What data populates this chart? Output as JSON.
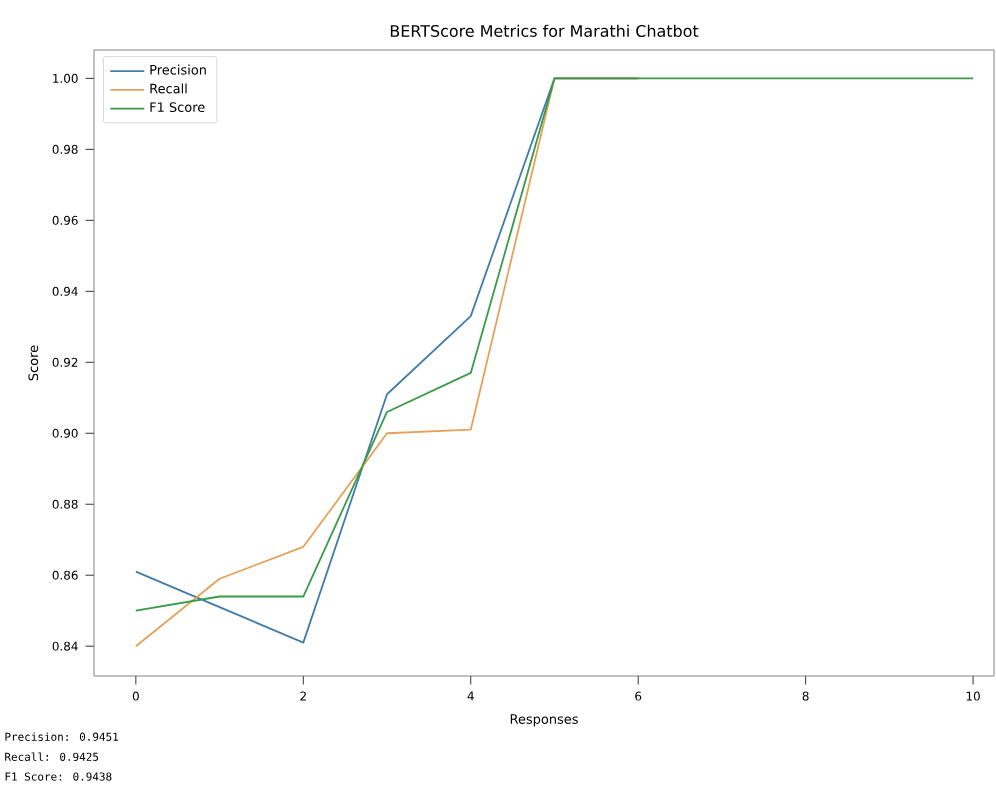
{
  "chart_data": {
    "type": "line",
    "title": "BERTScore Metrics for Marathi Chatbot",
    "xlabel": "Responses",
    "ylabel": "Score",
    "x": [
      0,
      1,
      2,
      3,
      4,
      5,
      6,
      7,
      8,
      9,
      10
    ],
    "series": [
      {
        "name": "Precision",
        "color": "#3f7cac",
        "values": [
          0.861,
          0.851,
          0.841,
          0.911,
          0.933,
          1.0,
          1.0,
          null,
          null,
          null,
          null
        ]
      },
      {
        "name": "Recall",
        "color": "#e5a157",
        "values": [
          0.84,
          0.859,
          0.868,
          0.9,
          0.901,
          1.0,
          1.0,
          null,
          null,
          null,
          null
        ]
      },
      {
        "name": "F1 Score",
        "color": "#3a9a48",
        "values": [
          0.85,
          0.854,
          0.854,
          0.906,
          0.917,
          1.0,
          1.0,
          1.0,
          1.0,
          1.0,
          1.0
        ]
      }
    ],
    "xlim": [
      -0.5,
      10.25
    ],
    "ylim": [
      0.8316,
      1.008
    ],
    "xticks": [
      0,
      2,
      4,
      6,
      8,
      10
    ],
    "yticks": [
      0.84,
      0.86,
      0.88,
      {
        "value": 0.9,
        "label": "0.90"
      },
      0.92,
      0.94,
      0.96,
      0.98,
      {
        "value": 1.0,
        "label": "1.00"
      }
    ],
    "grid": false,
    "legend": "top left",
    "marker": "none",
    "line_style": "solid",
    "annotations": [
      "Precision: 0.9451",
      "Recall: 0.9425",
      "F1 Score: 0.9438"
    ]
  }
}
